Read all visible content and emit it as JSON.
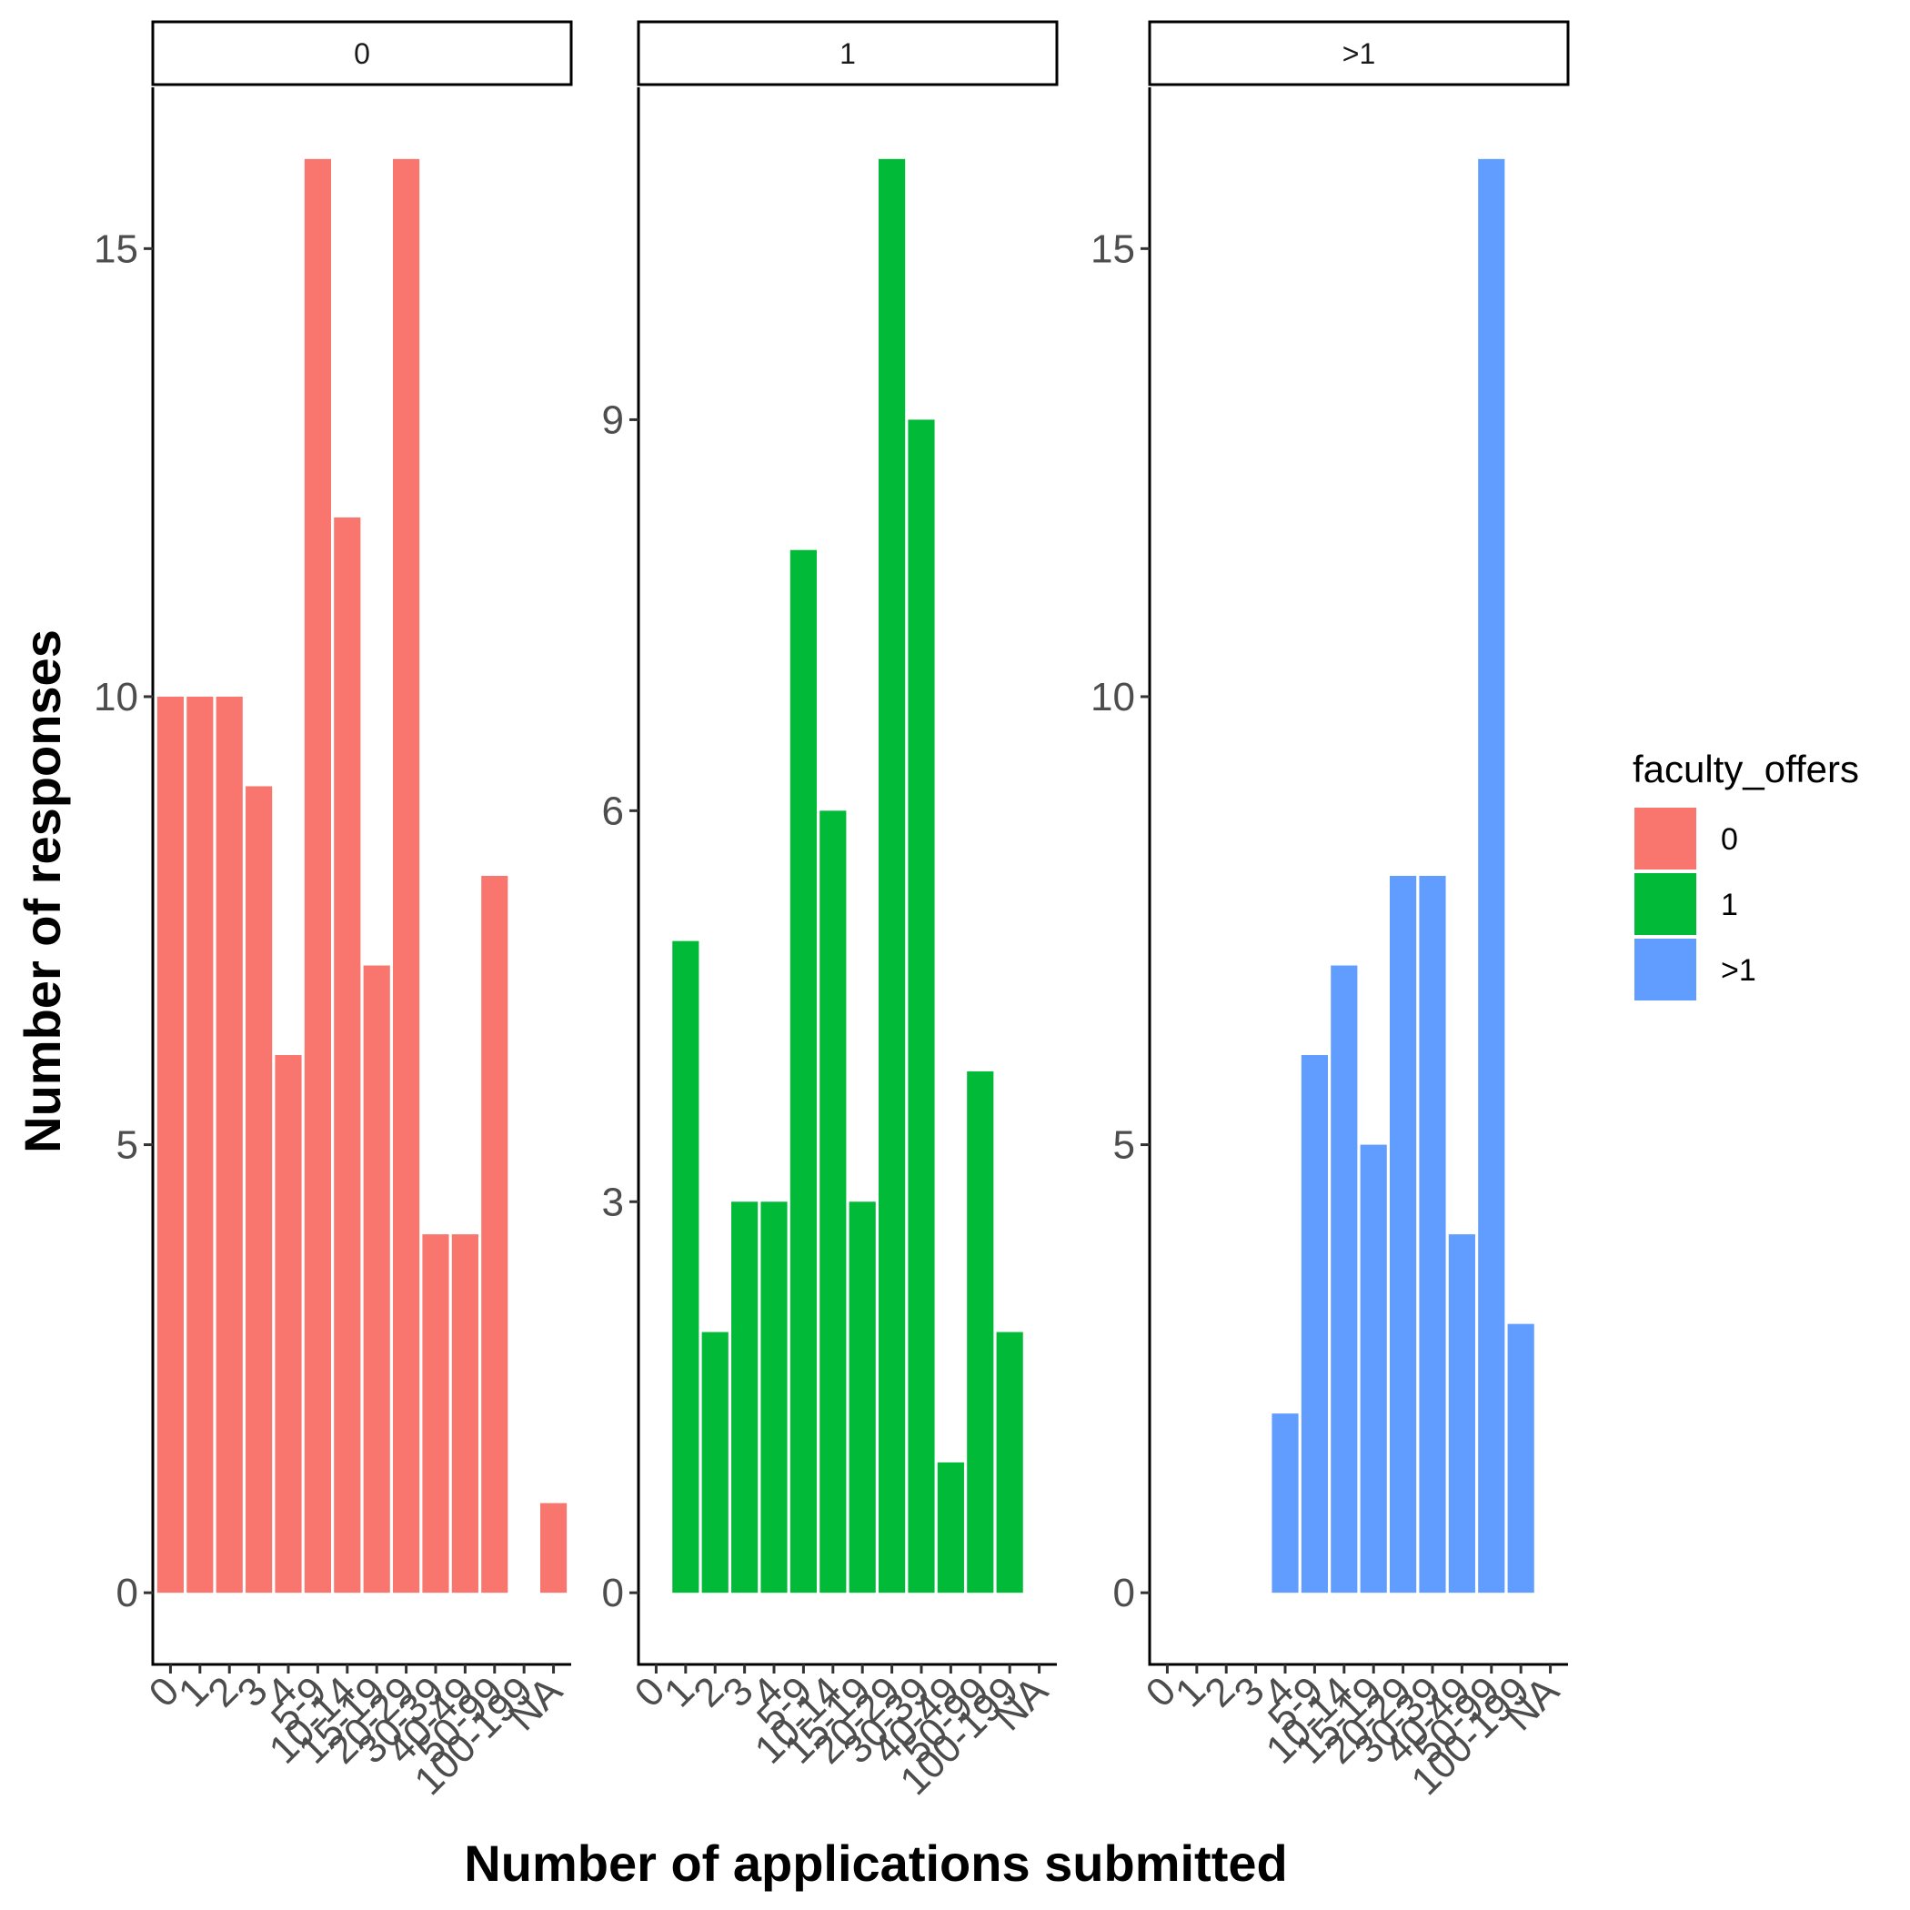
{
  "chart_data": {
    "type": "bar",
    "xlabel": "Number of applications submitted",
    "ylabel": "Number of responses",
    "categories": [
      "0",
      "1",
      "2",
      "3",
      "4",
      "5-9",
      "10-14",
      "15-19",
      "20-29",
      "30-39",
      "40-49",
      "50-99",
      "100-199",
      "NA"
    ],
    "facets": [
      {
        "label": "0",
        "color": "#F8766D",
        "ylim": [
          -0.8,
          16.8
        ],
        "yticks": [
          0,
          5,
          10,
          15
        ],
        "values": [
          10,
          10,
          10,
          9,
          6,
          16,
          12,
          7,
          16,
          4,
          4,
          8,
          0,
          1
        ]
      },
      {
        "label": "1",
        "color": "#00BA38",
        "ylim": [
          -0.55,
          11.55
        ],
        "yticks": [
          0,
          3,
          6,
          9
        ],
        "values": [
          null,
          5,
          2,
          3,
          3,
          8,
          6,
          3,
          11,
          9,
          1,
          4,
          2,
          null
        ]
      },
      {
        "label": ">1",
        "color": "#619CFF",
        "ylim": [
          -0.8,
          16.8
        ],
        "yticks": [
          0,
          5,
          10,
          15
        ],
        "values": [
          null,
          null,
          null,
          null,
          2,
          6,
          7,
          5,
          8,
          8,
          4,
          16,
          3,
          null
        ]
      }
    ],
    "legend": {
      "title": "faculty_offers",
      "position": "right",
      "items": [
        {
          "label": "0",
          "color": "#F8766D"
        },
        {
          "label": "1",
          "color": "#00BA38"
        },
        {
          "label": ">1",
          "color": "#619CFF"
        }
      ]
    },
    "grid": false
  }
}
